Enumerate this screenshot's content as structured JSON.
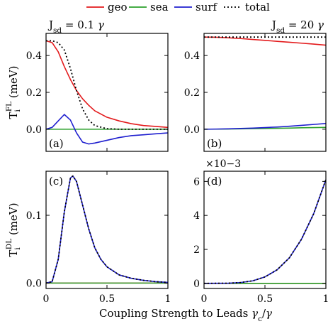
{
  "legend": [
    {
      "name": "geo",
      "color": "#e31a1c",
      "dash": ""
    },
    {
      "name": "sea",
      "color": "#2ca02c",
      "dash": ""
    },
    {
      "name": "surf",
      "color": "#1f1fcf",
      "dash": ""
    },
    {
      "name": "total",
      "color": "#000000",
      "dash": "2,3"
    }
  ],
  "xlabel": "Coupling Strength to Leads γc/γ",
  "chart_data": [
    {
      "type": "line",
      "panel_label": "(a)",
      "title": "Jsd = 0.1 γ",
      "ylabel": "TiFL (meV)",
      "xlim": [
        0,
        1
      ],
      "ylim": [
        -0.12,
        0.52
      ],
      "x_ticks": [
        0,
        0.5,
        1
      ],
      "x_tick_labels": [
        "",
        "",
        ""
      ],
      "y_ticks": [
        0,
        0.2,
        0.4
      ],
      "y_tick_labels": [
        "0.0",
        "0.2",
        "0.4"
      ],
      "x": [
        0,
        0.05,
        0.1,
        0.15,
        0.2,
        0.25,
        0.3,
        0.35,
        0.4,
        0.5,
        0.6,
        0.7,
        0.8,
        0.9,
        1.0
      ],
      "series": [
        {
          "name": "geo",
          "values": [
            0.48,
            0.47,
            0.42,
            0.34,
            0.27,
            0.21,
            0.165,
            0.13,
            0.1,
            0.065,
            0.045,
            0.03,
            0.02,
            0.015,
            0.01
          ]
        },
        {
          "name": "sea",
          "values": [
            0,
            0,
            0,
            0,
            0,
            0,
            0,
            0,
            0,
            0,
            0,
            0,
            0,
            0,
            0
          ]
        },
        {
          "name": "surf",
          "values": [
            0,
            0.01,
            0.045,
            0.08,
            0.05,
            -0.02,
            -0.07,
            -0.08,
            -0.075,
            -0.06,
            -0.045,
            -0.035,
            -0.03,
            -0.025,
            -0.02
          ]
        },
        {
          "name": "total",
          "values": [
            0.48,
            0.48,
            0.47,
            0.43,
            0.33,
            0.21,
            0.11,
            0.05,
            0.02,
            0.003,
            0,
            0,
            0,
            0,
            0
          ]
        }
      ]
    },
    {
      "type": "line",
      "panel_label": "(b)",
      "title": "Jsd = 20 γ",
      "ylabel": "",
      "xlim": [
        0,
        1
      ],
      "ylim": [
        -0.12,
        0.52
      ],
      "x_ticks": [
        0,
        0.5,
        1
      ],
      "x_tick_labels": [
        "",
        "",
        ""
      ],
      "y_ticks": [
        0,
        0.2,
        0.4
      ],
      "y_tick_labels": [
        "0.0",
        "0.2",
        "0.4"
      ],
      "x": [
        0,
        0.1,
        0.2,
        0.3,
        0.4,
        0.5,
        0.6,
        0.7,
        0.8,
        0.9,
        1.0
      ],
      "series": [
        {
          "name": "geo",
          "values": [
            0.5,
            0.499,
            0.496,
            0.492,
            0.487,
            0.482,
            0.477,
            0.472,
            0.467,
            0.462,
            0.456
          ]
        },
        {
          "name": "sea",
          "values": [
            0,
            0.0005,
            0.001,
            0.002,
            0.003,
            0.004,
            0.005,
            0.006,
            0.008,
            0.009,
            0.01
          ]
        },
        {
          "name": "surf",
          "values": [
            0,
            0.001,
            0.002,
            0.004,
            0.006,
            0.009,
            0.012,
            0.016,
            0.021,
            0.026,
            0.031
          ]
        },
        {
          "name": "total",
          "values": [
            0.5,
            0.5,
            0.5,
            0.5,
            0.5,
            0.5,
            0.5,
            0.5,
            0.5,
            0.5,
            0.5
          ]
        }
      ]
    },
    {
      "type": "line",
      "panel_label": "(c)",
      "title": "",
      "ylabel": "TiDL (meV)",
      "xlim": [
        0,
        1
      ],
      "ylim": [
        -0.008,
        0.165
      ],
      "x_ticks": [
        0,
        0.5,
        1
      ],
      "x_tick_labels": [
        "0",
        "0.5",
        "1"
      ],
      "y_ticks": [
        0,
        0.1
      ],
      "y_tick_labels": [
        "0.0",
        "0.1"
      ],
      "x": [
        0,
        0.05,
        0.1,
        0.15,
        0.2,
        0.22,
        0.25,
        0.3,
        0.35,
        0.4,
        0.45,
        0.5,
        0.6,
        0.7,
        0.8,
        0.9,
        1.0
      ],
      "series": [
        {
          "name": "geo",
          "values": [
            0,
            0,
            0,
            0,
            0,
            0,
            0,
            0,
            0,
            0,
            0,
            0,
            0,
            0,
            0,
            0,
            0
          ]
        },
        {
          "name": "sea",
          "values": [
            0,
            0,
            0,
            0,
            0,
            0,
            0,
            0,
            0,
            0,
            0,
            0,
            0,
            0,
            0,
            0,
            0
          ]
        },
        {
          "name": "surf",
          "values": [
            0,
            0.002,
            0.035,
            0.105,
            0.155,
            0.158,
            0.15,
            0.115,
            0.08,
            0.052,
            0.035,
            0.024,
            0.012,
            0.007,
            0.004,
            0.002,
            0.001
          ]
        },
        {
          "name": "total",
          "values": [
            0,
            0.002,
            0.035,
            0.105,
            0.155,
            0.158,
            0.15,
            0.115,
            0.08,
            0.052,
            0.035,
            0.024,
            0.012,
            0.007,
            0.004,
            0.002,
            0.001
          ]
        }
      ]
    },
    {
      "type": "line",
      "panel_label": "(d)",
      "title": "",
      "ylabel": "",
      "scale_note": "×10−3",
      "xlim": [
        0,
        1
      ],
      "ylim": [
        -0.3,
        6.6
      ],
      "x_ticks": [
        0,
        0.5,
        1
      ],
      "x_tick_labels": [
        "0",
        "0.5",
        "1"
      ],
      "y_ticks": [
        0,
        2,
        4,
        6
      ],
      "y_tick_labels": [
        "0",
        "2",
        "4",
        "6"
      ],
      "x": [
        0,
        0.2,
        0.3,
        0.4,
        0.5,
        0.6,
        0.7,
        0.8,
        0.9,
        1.0
      ],
      "series": [
        {
          "name": "geo",
          "values": [
            0,
            0,
            0,
            0,
            0,
            0,
            0,
            0,
            0,
            0
          ]
        },
        {
          "name": "sea",
          "values": [
            0,
            0,
            0,
            0,
            0,
            0,
            0,
            0,
            0,
            0
          ]
        },
        {
          "name": "surf",
          "values": [
            0,
            0.01,
            0.05,
            0.15,
            0.38,
            0.8,
            1.5,
            2.6,
            4.1,
            6.1
          ]
        },
        {
          "name": "total",
          "values": [
            0,
            0.01,
            0.05,
            0.15,
            0.38,
            0.8,
            1.5,
            2.6,
            4.1,
            6.1
          ]
        }
      ]
    }
  ]
}
